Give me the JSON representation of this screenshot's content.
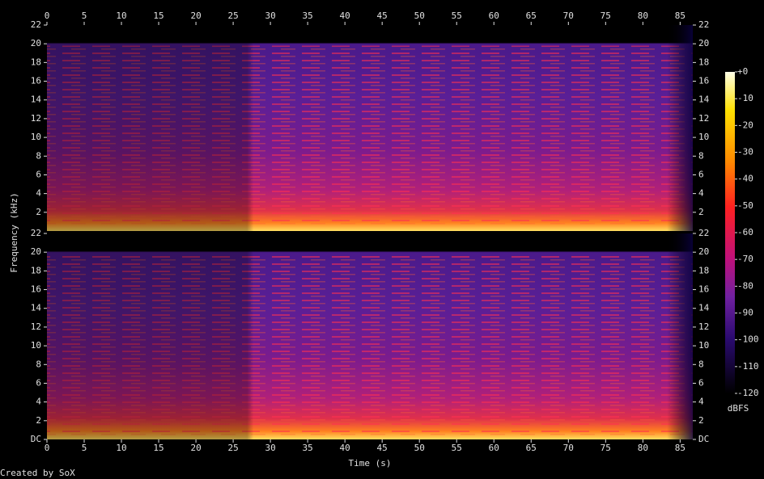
{
  "chart_data": {
    "type": "spectrogram",
    "x_label": "Time (s)",
    "y_label": "Frequency (kHz)",
    "footer": "Created by SoX",
    "xlim": [
      0,
      86.7
    ],
    "xticks": [
      0,
      5,
      10,
      15,
      20,
      25,
      30,
      35,
      40,
      45,
      50,
      55,
      60,
      65,
      70,
      75,
      80,
      85
    ],
    "channels": [
      {
        "ylim": [
          0,
          22
        ],
        "yticks": [
          2,
          4,
          6,
          8,
          10,
          12,
          14,
          16,
          18,
          20,
          22
        ]
      },
      {
        "ylim": [
          0,
          22
        ],
        "yticks": [
          {
            "value": 0,
            "label": "DC"
          },
          2,
          4,
          6,
          8,
          10,
          12,
          14,
          16,
          18,
          20,
          22
        ]
      }
    ],
    "colorbar": {
      "label": "dBFS",
      "lim": [
        -120,
        0
      ],
      "ticks": [
        {
          "value": 0,
          "label": "+0"
        },
        -10,
        -20,
        -30,
        -40,
        -50,
        -60,
        -70,
        -80,
        -90,
        -100,
        -110,
        -120
      ]
    }
  }
}
